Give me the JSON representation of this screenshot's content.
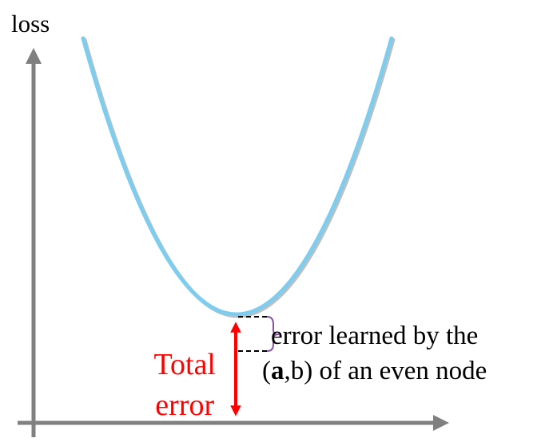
{
  "axes": {
    "y_label": "loss",
    "axis_color": "#808080"
  },
  "curve": {
    "color": "#7ccdf0",
    "shape": "parabola"
  },
  "total_error": {
    "line1": "Total",
    "line2": "error",
    "color": "#ff0000"
  },
  "annotation": {
    "line1": "error learned by the",
    "line2_open": "(",
    "line2_bold": "a",
    "line2_rest": ",b) of an even node",
    "brace_color": "#8a4fb0"
  }
}
